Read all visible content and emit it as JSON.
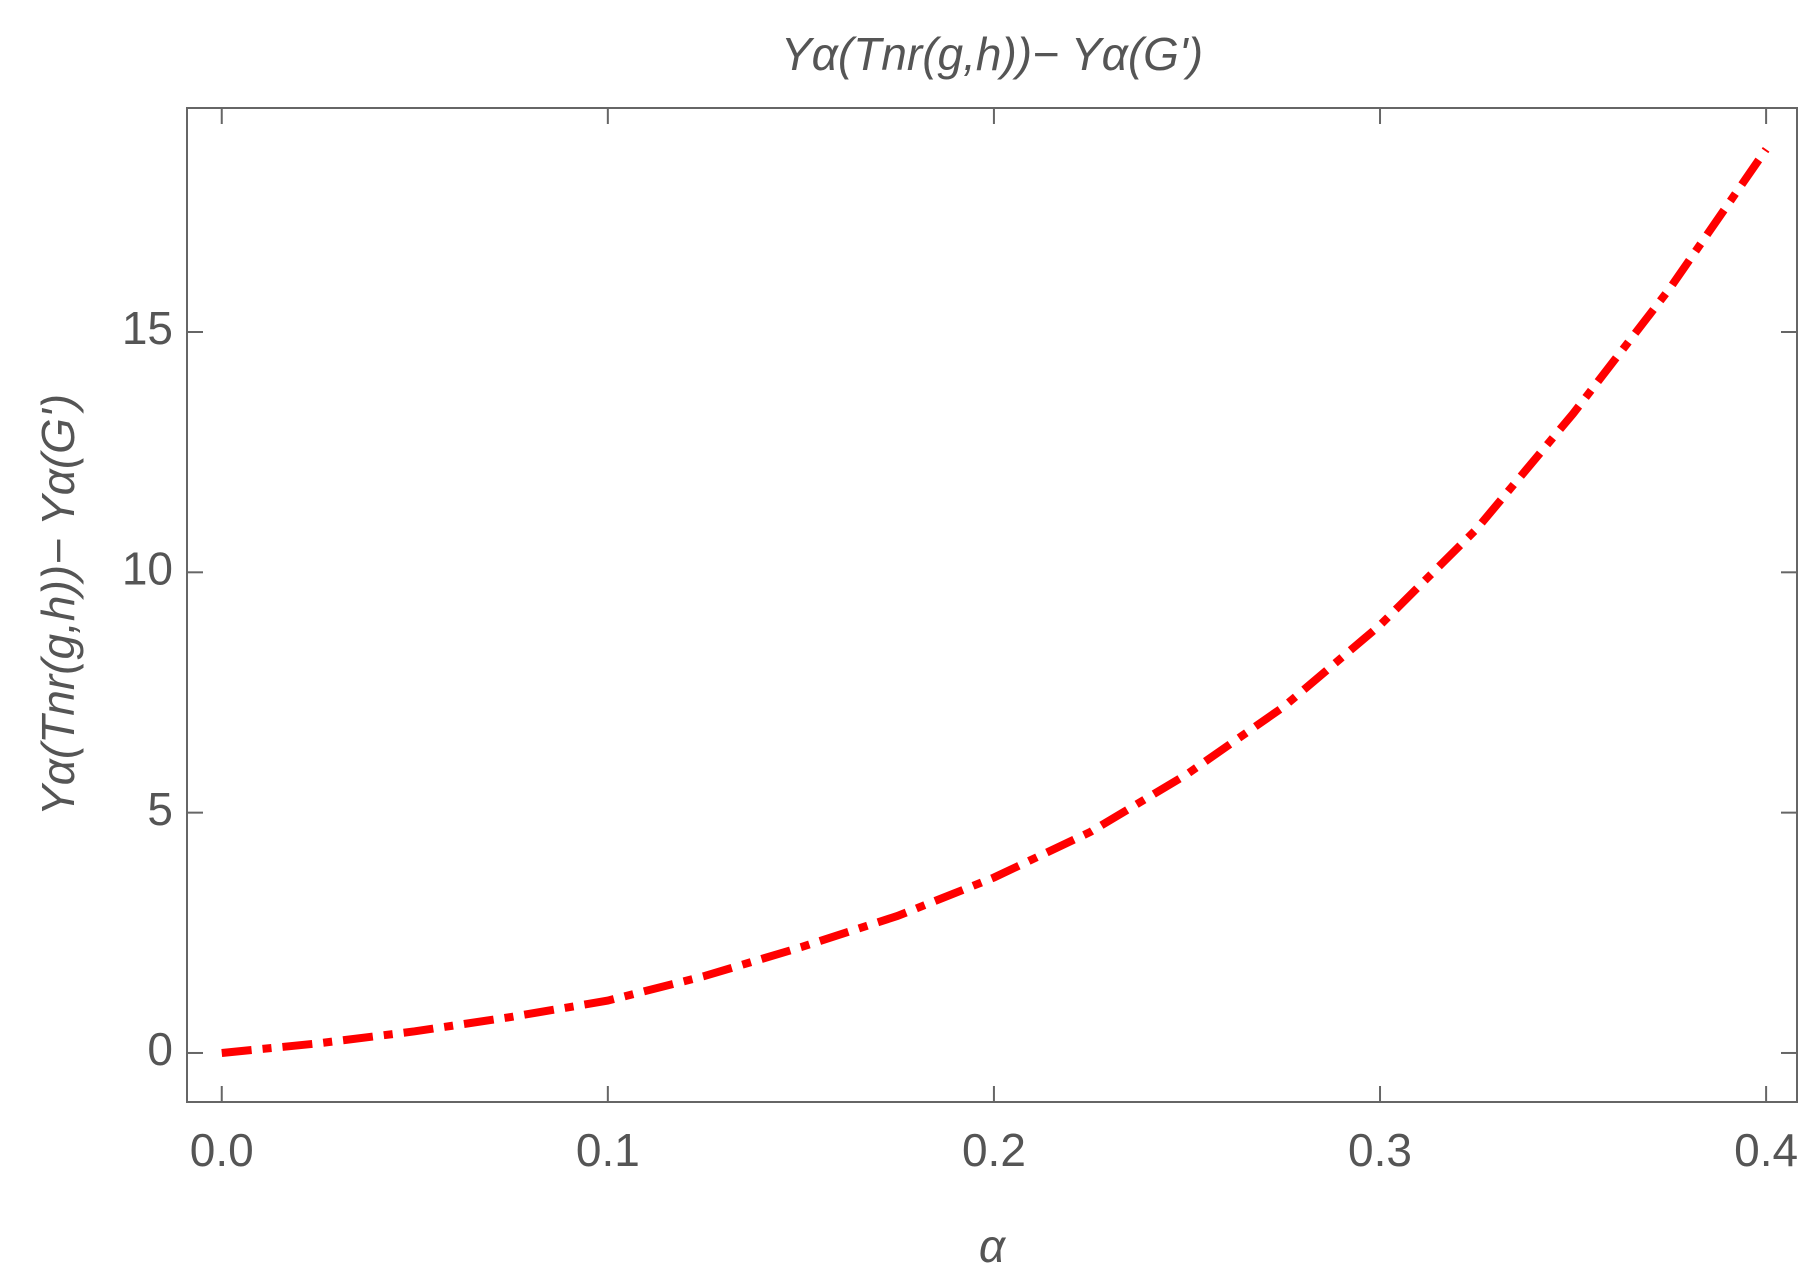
{
  "chart_data": {
    "type": "line",
    "title": "Yα(Tnr(g,h))− Yα(G')",
    "xlabel": "α",
    "ylabel": "Yα(Tnr(g,h))− Yα(G')",
    "x": [
      0,
      0.025,
      0.05,
      0.075,
      0.1,
      0.125,
      0.15,
      0.175,
      0.2,
      0.225,
      0.25,
      0.275,
      0.3,
      0.325,
      0.35,
      0.375,
      0.4
    ],
    "series": [
      {
        "color": "#ff0000",
        "values": [
          0,
          0.2,
          0.45,
          0.75,
          1.09,
          1.6,
          2.2,
          2.85,
          3.65,
          4.6,
          5.8,
          7.2,
          8.9,
          10.9,
          13.3,
          15.9,
          18.8
        ]
      }
    ],
    "xlim": [
      -0.009,
      0.408
    ],
    "ylim": [
      -1.02,
      19.66
    ],
    "xticks": [
      {
        "value": 0,
        "label": "0.0"
      },
      0.1,
      0.2,
      0.3,
      0.4
    ],
    "yticks": [
      0,
      5,
      10,
      15
    ],
    "line_style": "dot-dash"
  }
}
